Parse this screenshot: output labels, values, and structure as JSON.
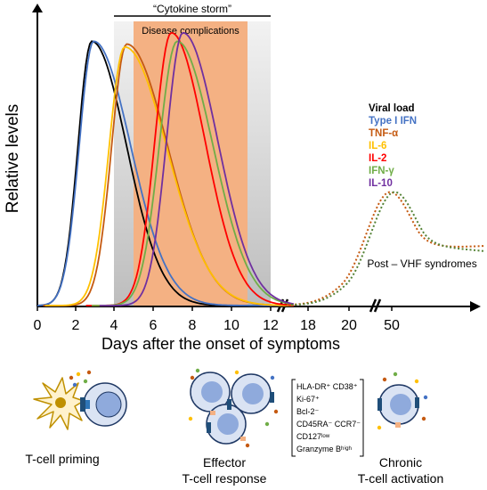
{
  "chart_data": {
    "type": "line",
    "ylabel": "Relative levels",
    "xlabel": "Days after the onset of symptoms",
    "x_ticks": [
      "0",
      "2",
      "4",
      "6",
      "8",
      "10",
      "12",
      "18",
      "20",
      "50"
    ],
    "bands": {
      "cytokine_storm": {
        "label": "“Cytokine storm”",
        "x_range": [
          4,
          12
        ]
      },
      "disease_complications": {
        "label": "Disease complications",
        "x_range": [
          5,
          11
        ]
      }
    },
    "series": [
      {
        "name": "Viral load",
        "color": "#000000",
        "peak_day": 2.8,
        "peak_level": 0.93
      },
      {
        "name": "Type I IFN",
        "color": "#4472c4",
        "peak_day": 2.9,
        "peak_level": 0.93
      },
      {
        "name": "TNF-α",
        "color": "#c55a11",
        "peak_day": 4.6,
        "peak_level": 0.92
      },
      {
        "name": "IL-6",
        "color": "#ffc000",
        "peak_day": 4.5,
        "peak_level": 0.91
      },
      {
        "name": "IL-2",
        "color": "#ff0000",
        "peak_day": 6.9,
        "peak_level": 0.96
      },
      {
        "name": "IFN-γ",
        "color": "#70ad47",
        "peak_day": 7.2,
        "peak_level": 0.93
      },
      {
        "name": "IL-10",
        "color": "#7030a0",
        "peak_day": 7.5,
        "peak_level": 0.96
      }
    ],
    "post_annotation": "Post – VHF syndromes",
    "post_series_colors": [
      "#c55a11",
      "#548235"
    ]
  },
  "bottom": {
    "priming_label": "T-cell priming",
    "effector_label_1": "Effector",
    "effector_label_2": "T-cell response",
    "chronic_label_1": "Chronic",
    "chronic_label_2": "T-cell activation",
    "markers": [
      "HLA-DR⁺ CD38⁺",
      "Ki-67⁺",
      "Bcl-2⁻",
      "CD45RA⁻ CCR7⁻",
      "CD127ˡᵒʷ",
      "Granzyme Bʰⁱᵍʰ"
    ]
  }
}
